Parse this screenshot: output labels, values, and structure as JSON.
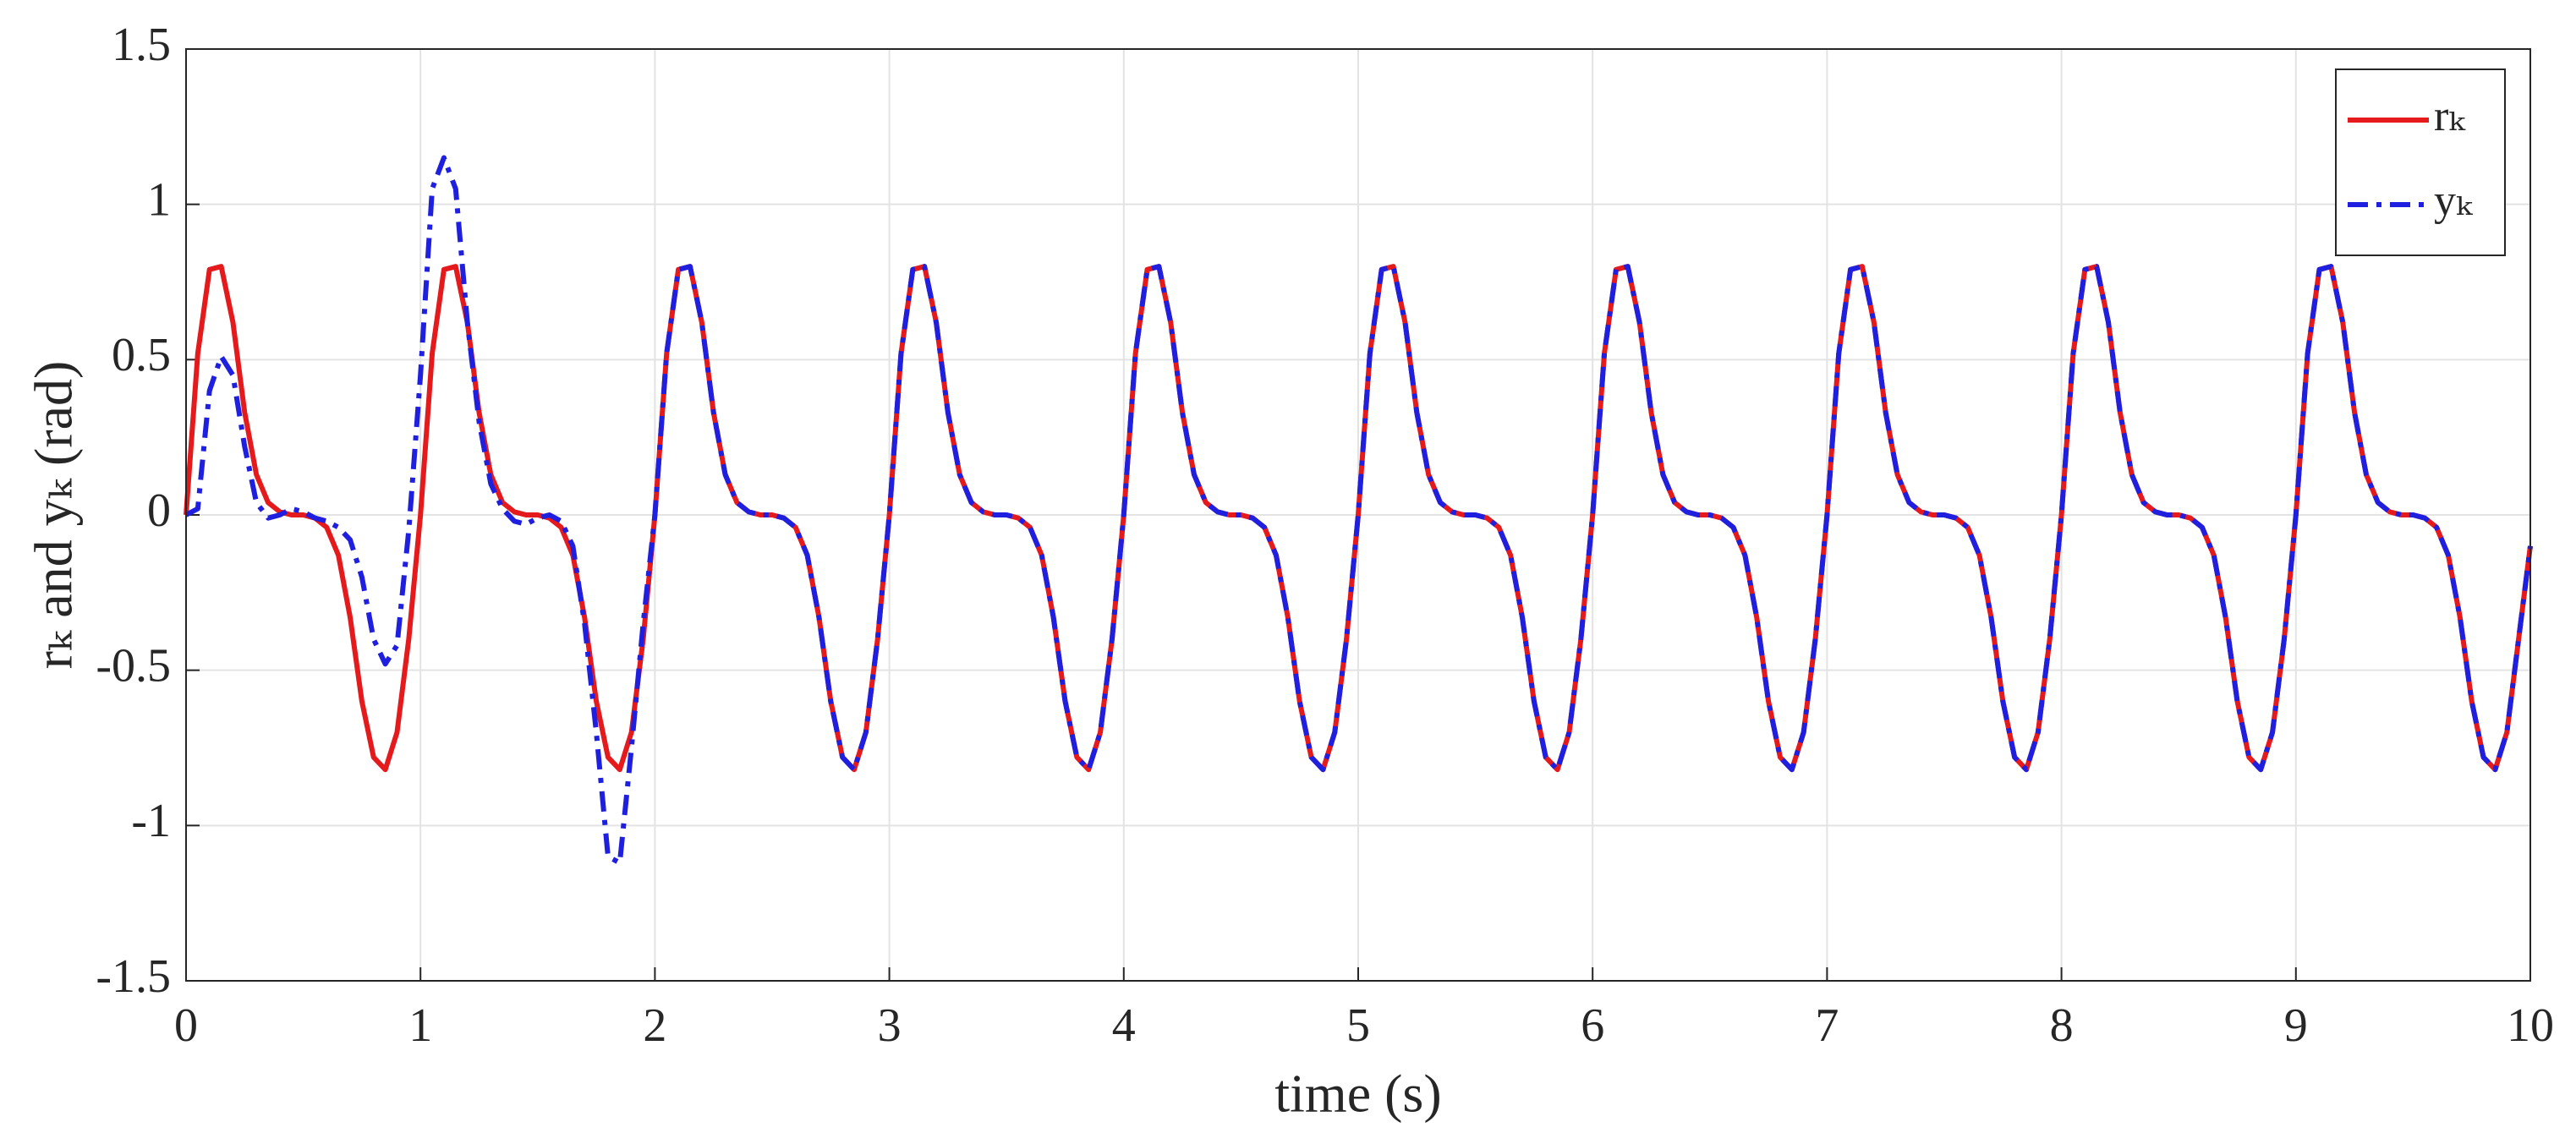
{
  "chart_data": {
    "type": "line",
    "xlabel": "time (s)",
    "ylabel": "rₖ and yₖ (rad)",
    "xlim": [
      0,
      10
    ],
    "ylim": [
      -1.5,
      1.5
    ],
    "xticks": [
      0,
      1,
      2,
      3,
      4,
      5,
      6,
      7,
      8,
      9,
      10
    ],
    "yticks": [
      -1.5,
      -1,
      -0.5,
      0,
      0.5,
      1,
      1.5
    ],
    "grid": true,
    "legend": "top-right",
    "x": [
      0,
      0.05,
      0.1,
      0.15,
      0.2,
      0.25,
      0.3,
      0.35,
      0.4,
      0.45,
      0.5,
      0.55,
      0.6,
      0.65,
      0.7,
      0.75,
      0.8,
      0.85,
      0.9,
      0.95,
      1,
      1.05,
      1.1,
      1.15,
      1.2,
      1.25,
      1.3,
      1.35,
      1.4,
      1.45,
      1.5,
      1.55,
      1.6,
      1.65,
      1.7,
      1.75,
      1.8,
      1.85,
      1.9,
      1.95,
      2,
      2.05,
      2.1,
      2.15,
      2.2,
      2.25,
      2.3,
      2.35,
      2.4,
      2.45,
      2.5,
      2.55,
      2.6,
      2.65,
      2.7,
      2.75,
      2.8,
      2.85,
      2.9,
      2.95,
      3,
      3.05,
      3.1,
      3.15,
      3.2,
      3.25,
      3.3,
      3.35,
      3.4,
      3.45,
      3.5,
      3.55,
      3.6,
      3.65,
      3.7,
      3.75,
      3.8,
      3.85,
      3.9,
      3.95,
      4,
      4.05,
      4.1,
      4.15,
      4.2,
      4.25,
      4.3,
      4.35,
      4.4,
      4.45,
      4.5,
      4.55,
      4.6,
      4.65,
      4.7,
      4.75,
      4.8,
      4.85,
      4.9,
      4.95,
      5,
      5.05,
      5.1,
      5.15,
      5.2,
      5.25,
      5.3,
      5.35,
      5.4,
      5.45,
      5.5,
      5.55,
      5.6,
      5.65,
      5.7,
      5.75,
      5.8,
      5.85,
      5.9,
      5.95,
      6,
      6.05,
      6.1,
      6.15,
      6.2,
      6.25,
      6.3,
      6.35,
      6.4,
      6.45,
      6.5,
      6.55,
      6.6,
      6.65,
      6.7,
      6.75,
      6.8,
      6.85,
      6.9,
      6.95,
      7,
      7.05,
      7.1,
      7.15,
      7.2,
      7.25,
      7.3,
      7.35,
      7.4,
      7.45,
      7.5,
      7.55,
      7.6,
      7.65,
      7.7,
      7.75,
      7.8,
      7.85,
      7.9,
      7.95,
      8,
      8.05,
      8.1,
      8.15,
      8.2,
      8.25,
      8.3,
      8.35,
      8.4,
      8.45,
      8.5,
      8.55,
      8.6,
      8.65,
      8.7,
      8.75,
      8.8,
      8.85,
      8.9,
      8.95,
      9,
      9.05,
      9.1,
      9.15,
      9.2,
      9.25,
      9.3,
      9.35,
      9.4,
      9.45,
      9.5,
      9.55,
      9.6,
      9.65,
      9.7,
      9.75,
      9.8,
      9.85,
      9.9,
      9.95,
      10
    ],
    "series": [
      {
        "name": "rₖ",
        "color": "#e41a1c",
        "style": "solid",
        "values": [
          0,
          0.52,
          0.79,
          0.8,
          0.62,
          0.33,
          0.13,
          0.04,
          0.01,
          0,
          0,
          -0.01,
          -0.04,
          -0.13,
          -0.33,
          -0.6,
          -0.78,
          -0.82,
          -0.7,
          -0.4,
          0,
          0.52,
          0.79,
          0.8,
          0.62,
          0.33,
          0.13,
          0.04,
          0.01,
          0,
          0,
          -0.01,
          -0.04,
          -0.13,
          -0.33,
          -0.6,
          -0.78,
          -0.82,
          -0.7,
          -0.4,
          0,
          0.52,
          0.79,
          0.8,
          0.62,
          0.33,
          0.13,
          0.04,
          0.01,
          0,
          0,
          -0.01,
          -0.04,
          -0.13,
          -0.33,
          -0.6,
          -0.78,
          -0.82,
          -0.7,
          -0.4,
          0,
          0.52,
          0.79,
          0.8,
          0.62,
          0.33,
          0.13,
          0.04,
          0.01,
          0,
          0,
          -0.01,
          -0.04,
          -0.13,
          -0.33,
          -0.6,
          -0.78,
          -0.82,
          -0.7,
          -0.4,
          0,
          0.52,
          0.79,
          0.8,
          0.62,
          0.33,
          0.13,
          0.04,
          0.01,
          0,
          0,
          -0.01,
          -0.04,
          -0.13,
          -0.33,
          -0.6,
          -0.78,
          -0.82,
          -0.7,
          -0.4,
          0,
          0.52,
          0.79,
          0.8,
          0.62,
          0.33,
          0.13,
          0.04,
          0.01,
          0,
          0,
          -0.01,
          -0.04,
          -0.13,
          -0.33,
          -0.6,
          -0.78,
          -0.82,
          -0.7,
          -0.4,
          0,
          0.52,
          0.79,
          0.8,
          0.62,
          0.33,
          0.13,
          0.04,
          0.01,
          0,
          0,
          -0.01,
          -0.04,
          -0.13,
          -0.33,
          -0.6,
          -0.78,
          -0.82,
          -0.7,
          -0.4,
          0,
          0.52,
          0.79,
          0.8,
          0.62,
          0.33,
          0.13,
          0.04,
          0.01,
          0,
          0,
          -0.01,
          -0.04,
          -0.13,
          -0.33,
          -0.6,
          -0.78,
          -0.82,
          -0.7,
          -0.4,
          0,
          0.52,
          0.79,
          0.8,
          0.62,
          0.33,
          0.13,
          0.04,
          0.01,
          0,
          0,
          -0.01,
          -0.04,
          -0.13,
          -0.33,
          -0.6,
          -0.78,
          -0.82,
          -0.7,
          -0.4,
          0,
          0.52,
          0.79,
          0.8,
          0.62,
          0.33,
          0.13,
          0.04,
          0.01,
          0,
          0,
          -0.01,
          -0.04,
          -0.13,
          -0.33,
          -0.6,
          -0.78,
          -0.82,
          -0.7,
          -0.4,
          -0.1
        ]
      },
      {
        "name": "yₖ",
        "color": "#1f1fe0",
        "style": "dashdot",
        "values": [
          0,
          0.02,
          0.4,
          0.51,
          0.45,
          0.22,
          0.04,
          -0.01,
          0,
          0.02,
          0.01,
          -0.01,
          -0.02,
          -0.04,
          -0.08,
          -0.2,
          -0.4,
          -0.48,
          -0.42,
          -0.05,
          0.45,
          1.05,
          1.15,
          1.05,
          0.62,
          0.3,
          0.1,
          0.02,
          -0.02,
          -0.03,
          -0.01,
          0,
          -0.02,
          -0.1,
          -0.35,
          -0.7,
          -1.1,
          -1.12,
          -0.75,
          -0.35,
          0,
          0.52,
          0.79,
          0.8,
          0.62,
          0.33,
          0.13,
          0.04,
          0.01,
          0,
          0,
          -0.01,
          -0.04,
          -0.13,
          -0.33,
          -0.6,
          -0.78,
          -0.82,
          -0.7,
          -0.4,
          0,
          0.52,
          0.79,
          0.8,
          0.62,
          0.33,
          0.13,
          0.04,
          0.01,
          0,
          0,
          -0.01,
          -0.04,
          -0.13,
          -0.33,
          -0.6,
          -0.78,
          -0.82,
          -0.7,
          -0.4,
          0,
          0.52,
          0.79,
          0.8,
          0.62,
          0.33,
          0.13,
          0.04,
          0.01,
          0,
          0,
          -0.01,
          -0.04,
          -0.13,
          -0.33,
          -0.6,
          -0.78,
          -0.82,
          -0.7,
          -0.4,
          0,
          0.52,
          0.79,
          0.8,
          0.62,
          0.33,
          0.13,
          0.04,
          0.01,
          0,
          0,
          -0.01,
          -0.04,
          -0.13,
          -0.33,
          -0.6,
          -0.78,
          -0.82,
          -0.7,
          -0.4,
          0,
          0.52,
          0.79,
          0.8,
          0.62,
          0.33,
          0.13,
          0.04,
          0.01,
          0,
          0,
          -0.01,
          -0.04,
          -0.13,
          -0.33,
          -0.6,
          -0.78,
          -0.82,
          -0.7,
          -0.4,
          0,
          0.52,
          0.79,
          0.8,
          0.62,
          0.33,
          0.13,
          0.04,
          0.01,
          0,
          0,
          -0.01,
          -0.04,
          -0.13,
          -0.33,
          -0.6,
          -0.78,
          -0.82,
          -0.7,
          -0.4,
          0,
          0.52,
          0.79,
          0.8,
          0.62,
          0.33,
          0.13,
          0.04,
          0.01,
          0,
          0,
          -0.01,
          -0.04,
          -0.13,
          -0.33,
          -0.6,
          -0.78,
          -0.82,
          -0.7,
          -0.4,
          0,
          0.52,
          0.79,
          0.8,
          0.62,
          0.33,
          0.13,
          0.04,
          0.01,
          0,
          0,
          -0.01,
          -0.04,
          -0.13,
          -0.33,
          -0.6,
          -0.78,
          -0.82,
          -0.7,
          -0.4,
          -0.1
        ]
      }
    ]
  }
}
